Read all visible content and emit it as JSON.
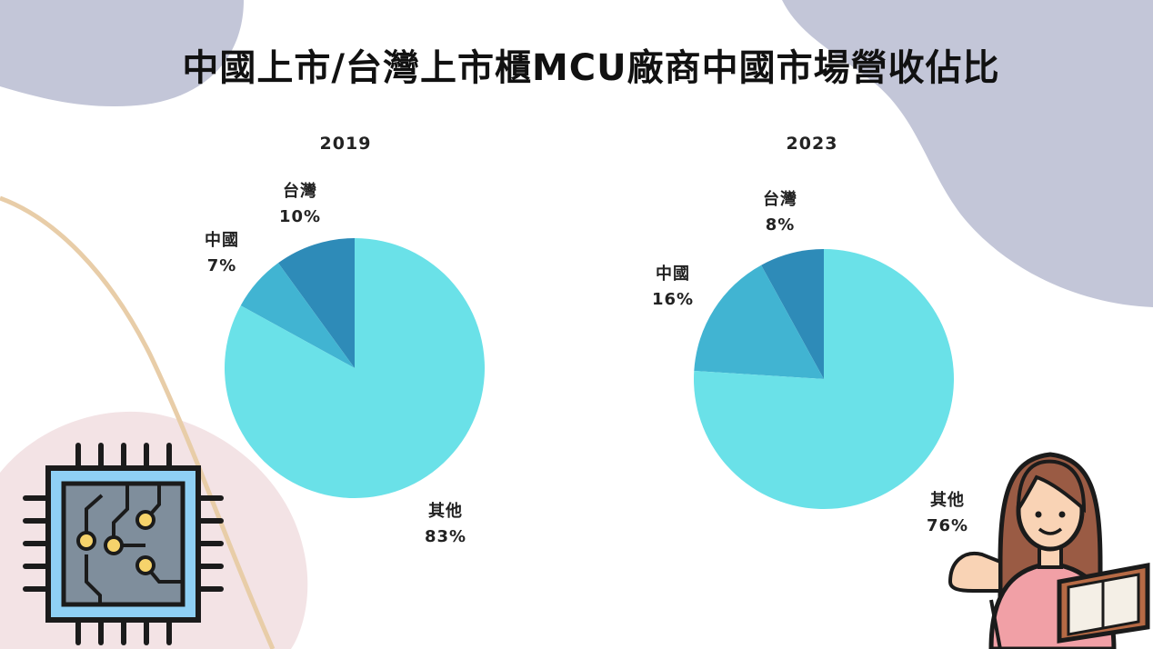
{
  "title": "中國上市/台灣上市櫃MCU廠商中國市場營收佔比",
  "chart_data": [
    {
      "type": "pie",
      "title": "2019",
      "categories": [
        "台灣",
        "中國",
        "其他"
      ],
      "values": [
        10,
        7,
        83
      ],
      "labels": [
        "10%",
        "7%",
        "83%"
      ],
      "colors": [
        "#2e8bb8",
        "#41b4d2",
        "#6ae1e8"
      ]
    },
    {
      "type": "pie",
      "title": "2023",
      "categories": [
        "台灣",
        "中國",
        "其他"
      ],
      "values": [
        8,
        16,
        76
      ],
      "labels": [
        "8%",
        "16%",
        "76%"
      ],
      "colors": [
        "#2e8bb8",
        "#41b4d2",
        "#6ae1e8"
      ]
    }
  ],
  "decor": {
    "icons": [
      "microchip-icon",
      "woman-with-book-icon"
    ],
    "blob_colors": [
      "#c2c6d9",
      "#f2e2e4",
      "#e7c9a1"
    ]
  }
}
